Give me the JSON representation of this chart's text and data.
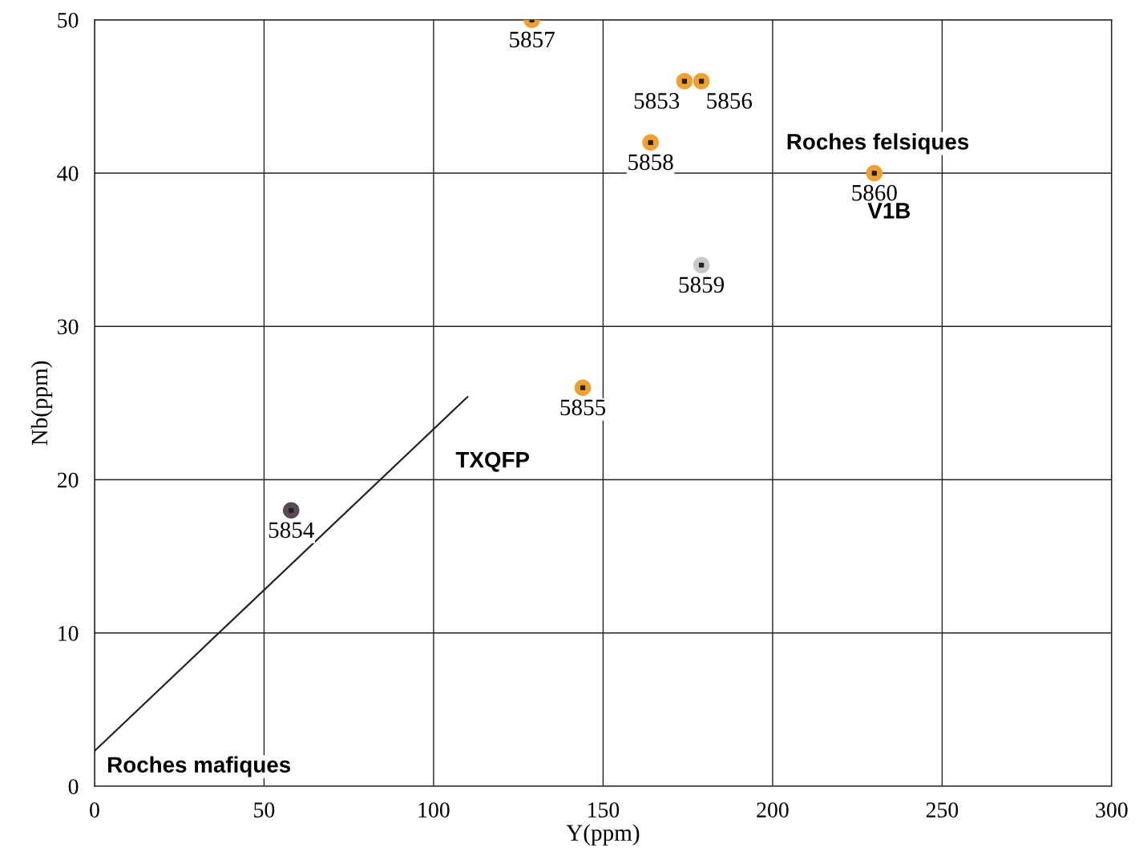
{
  "chart_data": {
    "type": "scatter",
    "xlabel": "Y(ppm)",
    "ylabel": "Nb(ppm)",
    "xlim": [
      0,
      300
    ],
    "xticks": [
      0,
      50,
      100,
      150,
      200,
      250,
      300
    ],
    "ylim": [
      0,
      50
    ],
    "yticks": [
      0,
      10,
      20,
      30,
      40,
      50
    ],
    "grid": true,
    "marker": "circle",
    "series": [
      {
        "x": [
          58,
          144,
          174,
          129,
          179,
          164,
          179,
          230
        ],
        "values": [
          18,
          26,
          46,
          50,
          46,
          42,
          34,
          40
        ],
        "colors": [
          "#5a4a55",
          "#f0a030",
          "#f0a030",
          "#f0a030",
          "#f0a030",
          "#f0a030",
          "#c8c8c8",
          "#f0a030"
        ]
      },
      {
        "type": "line",
        "x": [
          0,
          110
        ],
        "values": [
          2.3,
          25.4
        ],
        "color": "#222222",
        "marker": "none"
      }
    ],
    "annotations": [
      {
        "text": "5854",
        "x": 58,
        "y": 18
      },
      {
        "text": "5855",
        "x": 144,
        "y": 26
      },
      {
        "text": "5853",
        "x": 174,
        "y": 46
      },
      {
        "text": "5857",
        "x": 129,
        "y": 50
      },
      {
        "text": "5856",
        "x": 179,
        "y": 46
      },
      {
        "text": "5858",
        "x": 164,
        "y": 42
      },
      {
        "text": "5859",
        "x": 179,
        "y": 34
      },
      {
        "text": "5860",
        "x": 230,
        "y": 40
      },
      "TXQFP",
      "Roches felsiques",
      "V1B",
      "Roches mafiques"
    ]
  }
}
